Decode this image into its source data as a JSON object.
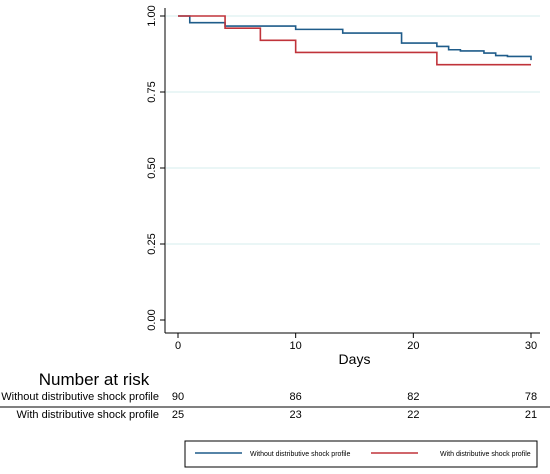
{
  "chart_data": {
    "type": "line",
    "step": true,
    "xlabel": "Days",
    "ylabel": "",
    "xlim": [
      0,
      30
    ],
    "ylim": [
      0,
      1
    ],
    "xticks": [
      "0",
      "10",
      "20",
      "30"
    ],
    "yticks": [
      "0.00",
      "0.25",
      "0.50",
      "0.75",
      "1.00"
    ],
    "grid": "horizontal",
    "legend_position": "bottom",
    "series": [
      {
        "name": "Without distributive shock profile",
        "color": "#1f5c8a",
        "x": [
          0,
          1,
          4,
          10,
          14,
          19,
          22,
          23,
          24,
          26,
          27,
          28,
          30
        ],
        "y": [
          1.0,
          0.978,
          0.967,
          0.956,
          0.944,
          0.911,
          0.9,
          0.889,
          0.885,
          0.878,
          0.87,
          0.867,
          0.855
        ]
      },
      {
        "name": "With distributive shock profile",
        "color": "#c0333a",
        "x": [
          0,
          4,
          7,
          10,
          22,
          30
        ],
        "y": [
          1.0,
          0.96,
          0.92,
          0.88,
          0.84,
          0.84
        ]
      }
    ],
    "risk_table": {
      "title": "Number at risk",
      "rows": [
        {
          "label": "Without distributive shock profile",
          "values": [
            "90",
            "86",
            "82",
            "78"
          ]
        },
        {
          "label": "With distributive shock profile",
          "values": [
            "25",
            "23",
            "22",
            "21"
          ]
        }
      ]
    }
  }
}
